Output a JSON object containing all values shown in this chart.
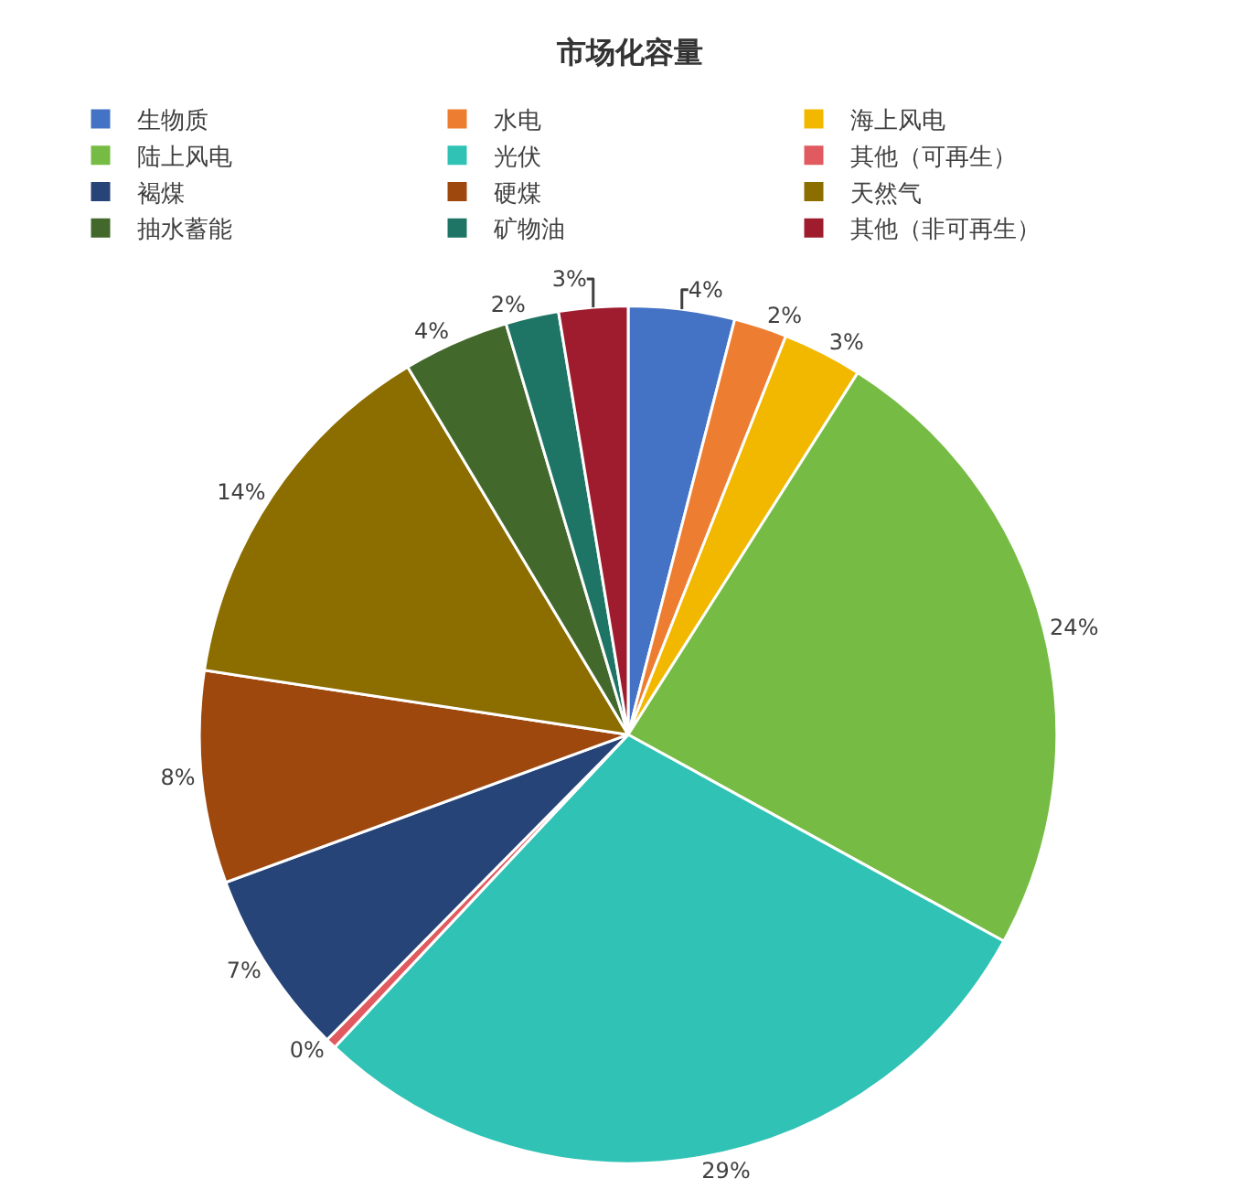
{
  "chart_data": {
    "type": "pie",
    "title": "市场化容量",
    "categories": [
      "生物质",
      "水电",
      "海上风电",
      "陆上风电",
      "光伏",
      "其他（可再生）",
      "褐煤",
      "硬煤",
      "天然气",
      "抽水蓄能",
      "矿物油",
      "其他（非可再生）"
    ],
    "values": [
      4,
      2,
      3,
      24,
      29,
      0.4,
      7,
      8,
      14,
      4,
      2,
      2.6
    ],
    "value_labels": [
      "4%",
      "2%",
      "3%",
      "24%",
      "29%",
      "0%",
      "7%",
      "8%",
      "14%",
      "4%",
      "2%",
      "3%"
    ],
    "colors": [
      "#4472c4",
      "#ed7d31",
      "#f2b800",
      "#76bc44",
      "#2fc2b5",
      "#e05a5f",
      "#264478",
      "#9e480e",
      "#8c6d00",
      "#43682b",
      "#1e7565",
      "#9e1c2e"
    ],
    "legend": "top"
  }
}
